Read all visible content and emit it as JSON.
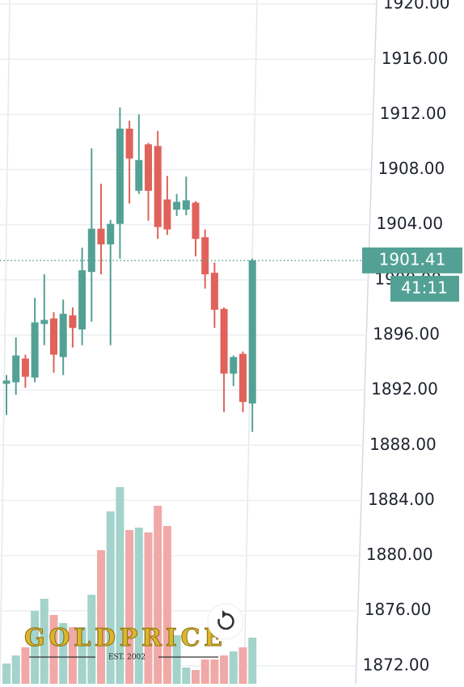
{
  "chart_data": {
    "type": "candlestick",
    "open": [
      1892.46,
      1892.57,
      1894.29,
      1892.91,
      1896.8,
      1897.2,
      1894.4,
      1897.43,
      1896.4,
      1900.57,
      1903.71,
      1902.57,
      1904.06,
      1910.97,
      1906.46,
      1909.83,
      1909.71,
      1905.83,
      1905.09,
      1905.09,
      1905.6,
      1903.09,
      1900.51,
      1897.89,
      1893.2,
      1894.63,
      1891.03
    ],
    "high": [
      1893.1,
      1895.83,
      1894.57,
      1898.69,
      1900.4,
      1897.66,
      1898.57,
      1898.0,
      1902.34,
      1909.54,
      1906.97,
      1904.34,
      1912.51,
      1911.54,
      1912.0,
      1909.94,
      1910.8,
      1907.54,
      1906.23,
      1907.49,
      1905.71,
      1903.66,
      1901.26,
      1898.0,
      1894.51,
      1894.8,
      1901.54
    ],
    "low": [
      1890.2,
      1891.66,
      1892.17,
      1892.57,
      1895.26,
      1893.26,
      1893.09,
      1895.09,
      1895.26,
      1896.97,
      1900.4,
      1895.26,
      1901.54,
      1905.54,
      1906.23,
      1904.29,
      1902.97,
      1903.26,
      1904.63,
      1904.69,
      1901.71,
      1899.37,
      1896.51,
      1890.4,
      1892.29,
      1890.4,
      1888.97
    ],
    "close": [
      1892.69,
      1894.51,
      1892.97,
      1896.91,
      1897.09,
      1894.57,
      1897.54,
      1896.51,
      1900.69,
      1903.71,
      1902.57,
      1904.06,
      1910.97,
      1908.8,
      1908.69,
      1906.46,
      1903.83,
      1903.66,
      1905.66,
      1905.77,
      1902.97,
      1900.4,
      1897.83,
      1893.2,
      1894.4,
      1891.14,
      1901.41
    ],
    "volume": [
      25,
      35,
      45,
      90,
      105,
      85,
      75,
      70,
      70,
      110,
      165,
      213,
      243,
      190,
      193,
      187,
      220,
      195,
      60,
      20,
      17,
      30,
      30,
      35,
      40,
      45,
      57
    ],
    "up_color": "#53a195",
    "down_color": "#e0625a",
    "up_volume_color": "#a3d3cb",
    "down_volume_color": "#f0a9a6",
    "ylim": [
      1870.7,
      1920.3
    ],
    "yticks": [
      {
        "value": 1872,
        "label": "1872.00"
      },
      {
        "value": 1876,
        "label": "1876.00"
      },
      {
        "value": 1880,
        "label": "1880.00"
      },
      {
        "value": 1884,
        "label": "1884.00"
      },
      {
        "value": 1888,
        "label": "1888.00"
      },
      {
        "value": 1892,
        "label": "1892.00"
      },
      {
        "value": 1896,
        "label": "1896.00"
      },
      {
        "value": 1900,
        "label": "1900.00"
      },
      {
        "value": 1904,
        "label": "1904.00"
      },
      {
        "value": 1908,
        "label": "1908.00"
      },
      {
        "value": 1912,
        "label": "1912.00"
      },
      {
        "value": 1916,
        "label": "1916.00"
      },
      {
        "value": 1920,
        "label": "1920.00"
      }
    ],
    "grid": true,
    "last_price": 1901.41,
    "countdown": "41:11",
    "watermark": {
      "name": "GOLDPRICE",
      "tagline": "EST. 2002"
    }
  }
}
